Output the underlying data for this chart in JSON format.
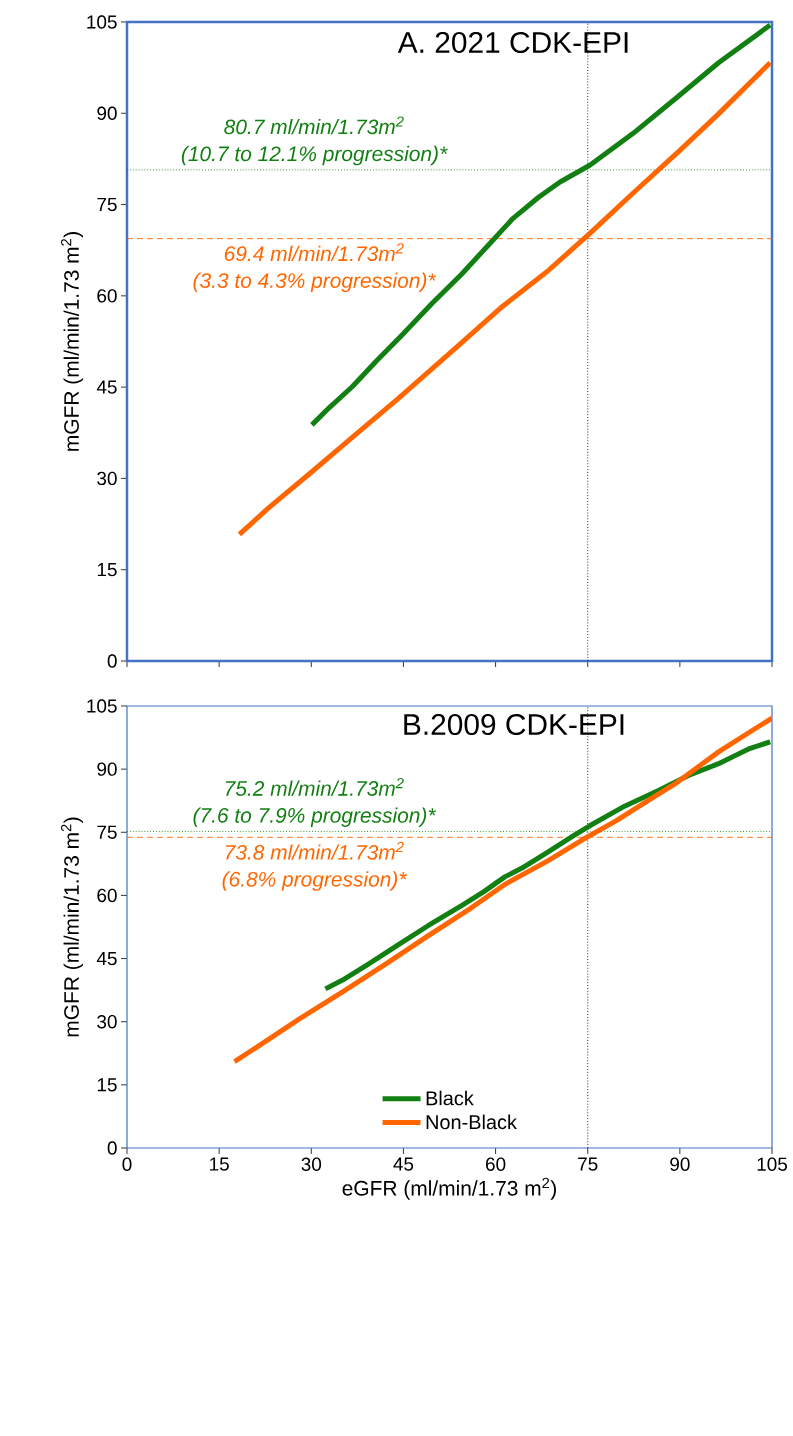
{
  "chart_data": [
    {
      "type": "line",
      "title": "A. 2021 CDK-EPI",
      "ylabel": "mGFR (ml/min/1.73 m$^{2}$)",
      "xlim": [
        0,
        105
      ],
      "ylim": [
        0,
        105
      ],
      "xticks": [
        0,
        15,
        30,
        45,
        60,
        75,
        90,
        105
      ],
      "yticks": [
        0,
        15,
        30,
        45,
        60,
        75,
        90,
        105
      ],
      "tick_labels": "y",
      "marker": "none",
      "line_style": "solid",
      "series": [
        {
          "color": "#127f12",
          "x": [
            30.1,
            32.9,
            36.7,
            40.6,
            44.7,
            49.6,
            54.5,
            58.7,
            62.8,
            67,
            70.5,
            75.4,
            82.4,
            90,
            96.3,
            104.7
          ],
          "values": [
            38.8,
            41.6,
            45.1,
            49.3,
            53.5,
            58.7,
            63.6,
            68.2,
            72.7,
            76.2,
            78.7,
            81.5,
            86.7,
            93,
            98.3,
            104.5
          ]
        },
        {
          "color": "#ff6600",
          "x": [
            18.3,
            23.1,
            30.1,
            37.1,
            44,
            53.8,
            60.8,
            68.4,
            75.4,
            82.4,
            90,
            96.3,
            101.9,
            104.7
          ],
          "values": [
            20.8,
            25.2,
            31.1,
            37.1,
            43,
            51.7,
            58,
            64,
            70.3,
            76.9,
            83.9,
            89.9,
            95.5,
            98.3
          ]
        }
      ],
      "ref_lines": [
        {
          "axis": "y",
          "value": 80.7,
          "label": "80.7 ml/min/1.73m$^{2}$",
          "color": "#127f12",
          "line_style": "dotted"
        },
        {
          "axis": "y",
          "value": 69.4,
          "label": "69.4  ml/min/1.73m$^{2}$",
          "color": "#ff6600",
          "line_style": "dashed"
        },
        {
          "axis": "x",
          "value": 75,
          "color": "#000000",
          "line_style": "dotted"
        }
      ],
      "annotations": [
        "(10.7 to 12.1% progression)*",
        "(3.3 to 4.3% progression)*"
      ]
    },
    {
      "type": "line",
      "title": "B.2009 CDK-EPI",
      "xlabel": "eGFR (ml/min/1.73 m$^{2}$)",
      "ylabel": "mGFR (ml/min/1.73 m$^{2}$)",
      "xlim": [
        0,
        105
      ],
      "ylim": [
        0,
        105
      ],
      "xticks": [
        0,
        15,
        30,
        45,
        60,
        75,
        90,
        105
      ],
      "yticks": [
        0,
        15,
        30,
        45,
        60,
        75,
        90,
        105
      ],
      "marker": "none",
      "line_style": "solid",
      "legend": "bottom",
      "series": [
        {
          "name": "Black",
          "color": "#127f12",
          "x": [
            32.3,
            35.1,
            39.3,
            44.2,
            49,
            54.6,
            58.1,
            61.5,
            64.3,
            68.5,
            72.7,
            75.4,
            81,
            86.6,
            91.4,
            96.3,
            101.2,
            104.7
          ],
          "values": [
            37.8,
            39.9,
            43.7,
            48.3,
            52.8,
            57.7,
            60.9,
            64.4,
            66.5,
            70.3,
            74.2,
            76.6,
            81.2,
            85,
            88.5,
            91.3,
            94.8,
            96.5
          ]
        },
        {
          "name": "Non-Black",
          "color": "#ff6600",
          "x": [
            17.5,
            22,
            28.2,
            35.1,
            42.1,
            49,
            56,
            61.5,
            68.5,
            74,
            79.6,
            85.2,
            89.4,
            96.3,
            101.9,
            105
          ],
          "values": [
            20.5,
            24.8,
            30.8,
            37.1,
            43.7,
            50.4,
            57,
            62.6,
            68.2,
            73.1,
            77.7,
            82.9,
            86.7,
            94.1,
            99.3,
            102.1
          ]
        }
      ],
      "ref_lines": [
        {
          "axis": "y",
          "value": 75.2,
          "label": "75.2 ml/min/1.73m$^{2}$",
          "color": "#127f12",
          "line_style": "dotted"
        },
        {
          "axis": "y",
          "value": 73.8,
          "label": "73.8  ml/min/1.73m$^{2}$",
          "color": "#ff6600",
          "line_style": "dashed"
        },
        {
          "axis": "x",
          "value": 75,
          "color": "#000000",
          "line_style": "dotted"
        }
      ],
      "annotations": [
        "(7.6 to 7.9% progression)*",
        "(6.8% progression)*"
      ]
    }
  ]
}
